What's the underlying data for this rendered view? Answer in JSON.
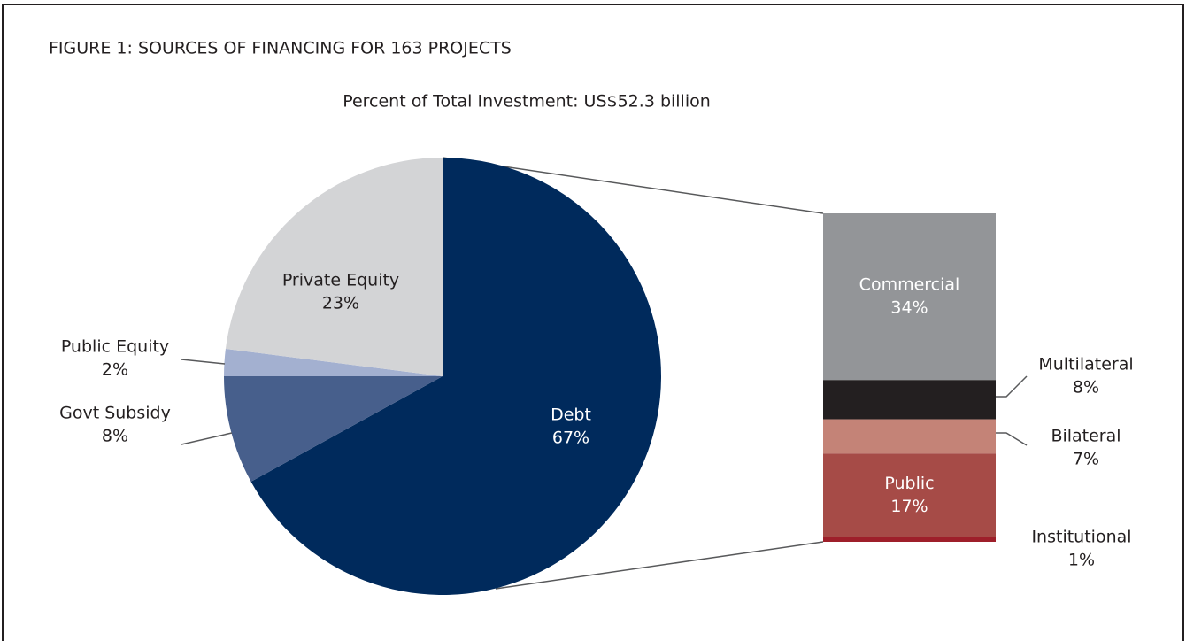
{
  "chart_data": [
    {
      "type": "pie",
      "title": "FIGURE 1: SOURCES OF FINANCING FOR 163 PROJECTS",
      "subtitle": "Percent of Total Investment: US$52.3 billion",
      "categories": [
        "Debt",
        "Govt Subsidy",
        "Public Equity",
        "Private Equity"
      ],
      "values": [
        67,
        8,
        2,
        23
      ],
      "value_labels": [
        "67%",
        "8%",
        "2%",
        "23%"
      ],
      "colors": [
        "#002a5c",
        "#475f8c",
        "#a3b0d0",
        "#d3d4d6"
      ]
    },
    {
      "type": "stacked-bar",
      "categories": [
        "Commercial",
        "Multilateral",
        "Bilateral",
        "Public",
        "Institutional"
      ],
      "values": [
        34,
        8,
        7,
        17,
        1
      ],
      "value_labels": [
        "34%",
        "8%",
        "7%",
        "17%",
        "1%"
      ],
      "colors": [
        "#939598",
        "#231f20",
        "#c48377",
        "#a64b47",
        "#9e1f2a"
      ]
    }
  ]
}
